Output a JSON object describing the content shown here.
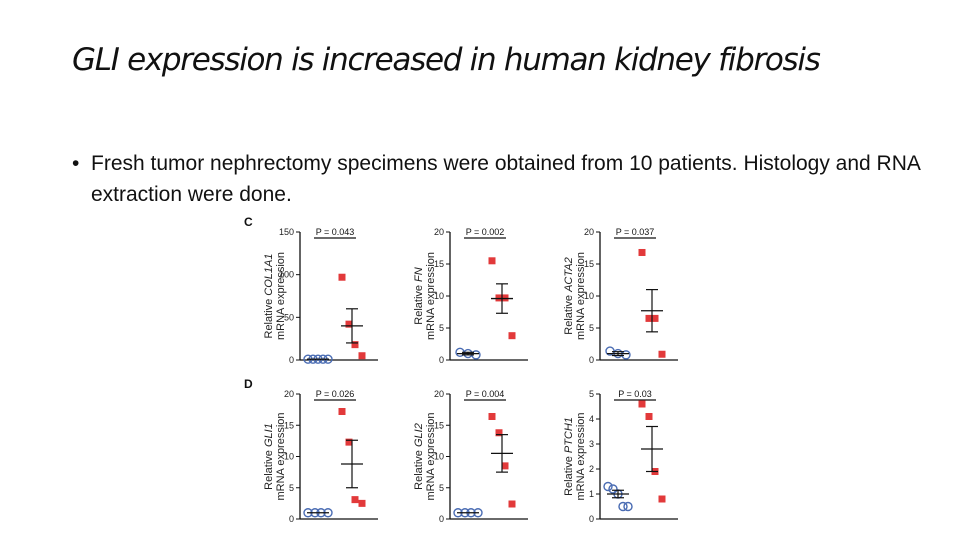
{
  "slide": {
    "title": "GLI expression is increased in human kidney fibrosis",
    "bullet_char": "•",
    "bullet_text": "Fresh tumor nephrectomy specimens were obtained from 10 patients. Histology and RNA extraction were done."
  },
  "colors": {
    "control": "#4a6cb3",
    "fibrosis": "#e2393a",
    "axis": "#111111"
  },
  "chart_data": [
    {
      "type": "scatter",
      "panel_label": "C",
      "gene": "COL1A1",
      "ylabel_prefix": "Relative",
      "ylabel_line2": "mRNA expression",
      "p_text": "P = 0.043",
      "ylim": [
        0,
        150
      ],
      "yticks": [
        "0",
        "50",
        "100",
        "150"
      ],
      "series": [
        {
          "values": [
            1,
            1,
            1,
            1,
            1
          ],
          "mean": 1
        },
        {
          "values": [
            97,
            42,
            18,
            5
          ],
          "mean": 40,
          "sem": 20
        }
      ]
    },
    {
      "type": "scatter",
      "panel_label": "",
      "gene": "FN",
      "ylabel_prefix": "Relative",
      "ylabel_line2": "mRNA expression",
      "p_text": "P = 0.002",
      "ylim": [
        0,
        20
      ],
      "yticks": [
        "0",
        "5",
        "10",
        "15",
        "20"
      ],
      "series": [
        {
          "values": [
            1.2,
            1.0,
            0.8
          ],
          "mean": 1,
          "sem": 0.2
        },
        {
          "values": [
            15.5,
            9.7,
            9.7,
            3.8
          ],
          "mean": 9.6,
          "sem": 2.3
        }
      ]
    },
    {
      "type": "scatter",
      "panel_label": "",
      "gene": "ACTA2",
      "ylabel_prefix": "Relative",
      "ylabel_line2": "mRNA expression",
      "p_text": "P = 0.037",
      "ylim": [
        0,
        20
      ],
      "yticks": [
        "0",
        "5",
        "10",
        "15",
        "20"
      ],
      "series": [
        {
          "values": [
            1.4,
            1.0,
            0.8
          ],
          "mean": 1,
          "sem": 0.3
        },
        {
          "values": [
            16.8,
            6.5,
            6.5,
            0.9
          ],
          "mean": 7.7,
          "sem": 3.3
        }
      ]
    },
    {
      "type": "scatter",
      "panel_label": "D",
      "gene": "GLI1",
      "ylabel_prefix": "Relative",
      "ylabel_line2": "mRNA expression",
      "p_text": "P = 0.026",
      "ylim": [
        0,
        20
      ],
      "yticks": [
        "0",
        "5",
        "10",
        "15",
        "20"
      ],
      "series": [
        {
          "values": [
            1,
            1,
            1,
            1
          ],
          "mean": 1
        },
        {
          "values": [
            17.2,
            12.3,
            3.1,
            2.5
          ],
          "mean": 8.8,
          "sem": 3.8
        }
      ]
    },
    {
      "type": "scatter",
      "panel_label": "",
      "gene": "GLI2",
      "ylabel_prefix": "Relative",
      "ylabel_line2": "mRNA expression",
      "p_text": "P = 0.004",
      "ylim": [
        0,
        20
      ],
      "yticks": [
        "0",
        "5",
        "10",
        "15",
        "20"
      ],
      "series": [
        {
          "values": [
            1,
            1,
            1,
            1
          ],
          "mean": 1
        },
        {
          "values": [
            16.4,
            13.8,
            8.5,
            2.4
          ],
          "mean": 10.5,
          "sem": 3.0
        }
      ]
    },
    {
      "type": "scatter",
      "panel_label": "",
      "gene": "PTCH1",
      "ylabel_prefix": "Relative",
      "ylabel_line2": "mRNA expression",
      "p_text": "P = 0.03",
      "ylim": [
        0,
        5
      ],
      "yticks": [
        "0",
        "1",
        "2",
        "3",
        "4",
        "5"
      ],
      "series": [
        {
          "values": [
            1.3,
            1.2,
            1.0,
            0.5,
            0.5
          ],
          "mean": 1,
          "sem": 0.15
        },
        {
          "values": [
            4.6,
            4.1,
            1.9,
            0.8
          ],
          "mean": 2.8,
          "sem": 0.9
        }
      ]
    }
  ]
}
